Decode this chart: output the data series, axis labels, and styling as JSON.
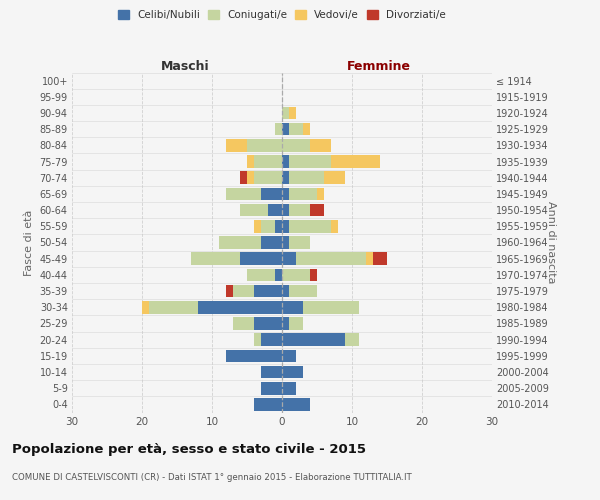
{
  "age_groups": [
    "100+",
    "95-99",
    "90-94",
    "85-89",
    "80-84",
    "75-79",
    "70-74",
    "65-69",
    "60-64",
    "55-59",
    "50-54",
    "45-49",
    "40-44",
    "35-39",
    "30-34",
    "25-29",
    "20-24",
    "15-19",
    "10-14",
    "5-9",
    "0-4"
  ],
  "birth_years": [
    "≤ 1914",
    "1915-1919",
    "1920-1924",
    "1925-1929",
    "1930-1934",
    "1935-1939",
    "1940-1944",
    "1945-1949",
    "1950-1954",
    "1955-1959",
    "1960-1964",
    "1965-1969",
    "1970-1974",
    "1975-1979",
    "1980-1984",
    "1985-1989",
    "1990-1994",
    "1995-1999",
    "2000-2004",
    "2005-2009",
    "2010-2014"
  ],
  "colors": {
    "celibi": "#4472a8",
    "coniugati": "#c5d5a0",
    "vedovi": "#f5c760",
    "divorziati": "#c0392b"
  },
  "maschi": {
    "celibi": [
      0,
      0,
      0,
      0,
      0,
      0,
      0,
      3,
      2,
      1,
      3,
      6,
      1,
      4,
      12,
      4,
      3,
      8,
      3,
      3,
      4
    ],
    "coniugati": [
      0,
      0,
      0,
      1,
      5,
      4,
      4,
      5,
      4,
      2,
      6,
      7,
      4,
      3,
      7,
      3,
      1,
      0,
      0,
      0,
      0
    ],
    "vedovi": [
      0,
      0,
      0,
      0,
      3,
      1,
      1,
      0,
      0,
      1,
      0,
      0,
      0,
      0,
      1,
      0,
      0,
      0,
      0,
      0,
      0
    ],
    "divorziati": [
      0,
      0,
      0,
      0,
      0,
      0,
      1,
      0,
      0,
      0,
      0,
      0,
      0,
      1,
      0,
      0,
      0,
      0,
      0,
      0,
      0
    ]
  },
  "femmine": {
    "celibi": [
      0,
      0,
      0,
      1,
      0,
      1,
      1,
      1,
      1,
      1,
      1,
      2,
      0,
      1,
      3,
      1,
      9,
      2,
      3,
      2,
      4
    ],
    "coniugati": [
      0,
      0,
      1,
      2,
      4,
      6,
      5,
      4,
      3,
      6,
      3,
      10,
      4,
      4,
      8,
      2,
      2,
      0,
      0,
      0,
      0
    ],
    "vedovi": [
      0,
      0,
      1,
      1,
      3,
      7,
      3,
      1,
      0,
      1,
      0,
      1,
      0,
      0,
      0,
      0,
      0,
      0,
      0,
      0,
      0
    ],
    "divorziati": [
      0,
      0,
      0,
      0,
      0,
      0,
      0,
      0,
      2,
      0,
      0,
      2,
      1,
      0,
      0,
      0,
      0,
      0,
      0,
      0,
      0
    ]
  },
  "xlim": 30,
  "title": "Popolazione per età, sesso e stato civile - 2015",
  "subtitle": "COMUNE DI CASTELVISCONTI (CR) - Dati ISTAT 1° gennaio 2015 - Elaborazione TUTTITALIA.IT",
  "ylabel_left": "Fasce di età",
  "ylabel_right": "Anni di nascita",
  "xlabel_left": "Maschi",
  "xlabel_right": "Femmine",
  "legend_labels": [
    "Celibi/Nubili",
    "Coniugati/e",
    "Vedovi/e",
    "Divorziati/e"
  ],
  "background_color": "#f5f5f5",
  "grid_color": "#cccccc"
}
